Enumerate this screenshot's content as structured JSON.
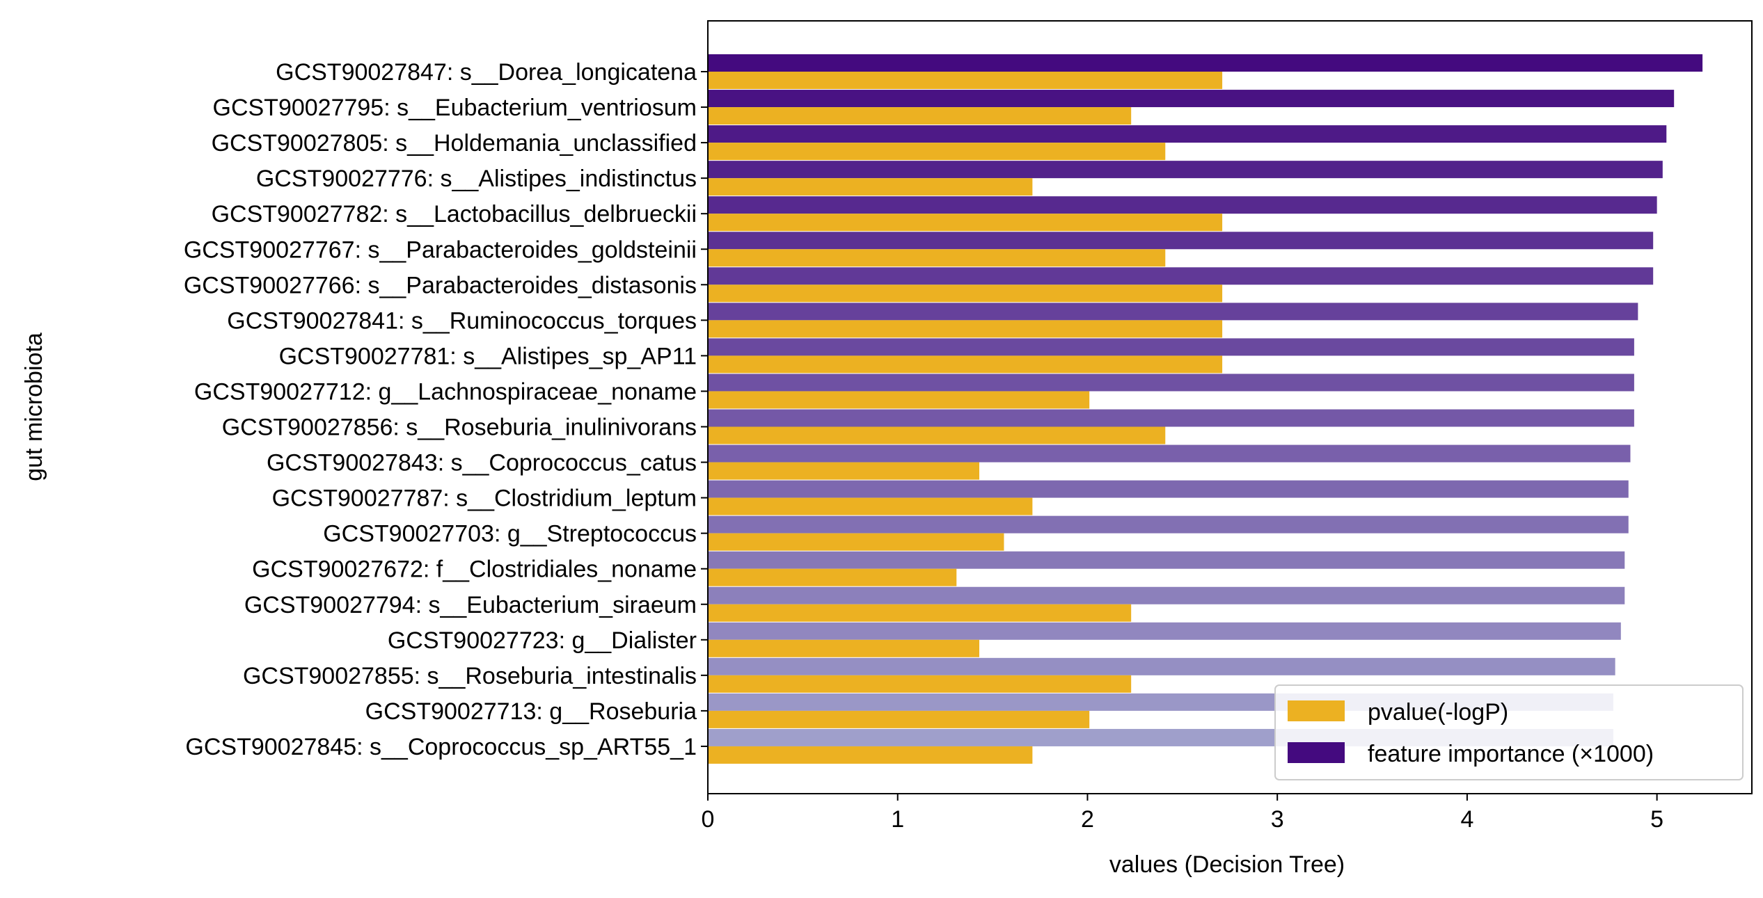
{
  "chart_data": {
    "type": "bar",
    "orientation": "horizontal",
    "title": "",
    "xlabel": "values (Decision Tree)",
    "ylabel": "gut microbiota",
    "xlim": [
      0,
      5.5
    ],
    "xticks": [
      0,
      1,
      2,
      3,
      4,
      5
    ],
    "grid": false,
    "legend": "bottom-right",
    "categories": [
      "GCST90027847: s__Dorea_longicatena",
      "GCST90027795: s__Eubacterium_ventriosum",
      "GCST90027805: s__Holdemania_unclassified",
      "GCST90027776: s__Alistipes_indistinctus",
      "GCST90027782: s__Lactobacillus_delbrueckii",
      "GCST90027767: s__Parabacteroides_goldsteinii",
      "GCST90027766: s__Parabacteroides_distasonis",
      "GCST90027841: s__Ruminococcus_torques",
      "GCST90027781: s__Alistipes_sp_AP11",
      "GCST90027712: g__Lachnospiraceae_noname",
      "GCST90027856: s__Roseburia_inulinivorans",
      "GCST90027843: s__Coprococcus_catus",
      "GCST90027787: s__Clostridium_leptum",
      "GCST90027703: g__Streptococcus",
      "GCST90027672: f__Clostridiales_noname",
      "GCST90027794: s__Eubacterium_siraeum",
      "GCST90027723: g__Dialister",
      "GCST90027855: s__Roseburia_intestinalis",
      "GCST90027713: g__Roseburia",
      "GCST90027845: s__Coprococcus_sp_ART55_1"
    ],
    "series": [
      {
        "name": "pvalue(-logP)",
        "color": "#ecb122",
        "values": [
          2.71,
          2.23,
          2.41,
          1.71,
          2.71,
          2.41,
          2.71,
          2.71,
          2.71,
          2.01,
          2.41,
          1.43,
          1.71,
          1.56,
          1.31,
          2.23,
          1.43,
          2.23,
          2.01,
          1.71
        ]
      },
      {
        "name": "feature importance (×1000)",
        "color": "#440a7f",
        "values": [
          5.24,
          5.09,
          5.05,
          5.03,
          5.0,
          4.98,
          4.98,
          4.9,
          4.88,
          4.88,
          4.88,
          4.86,
          4.85,
          4.85,
          4.83,
          4.83,
          4.81,
          4.78,
          4.77,
          4.77
        ],
        "color_gradient": [
          "#440a7f",
          "#9f9fcb"
        ]
      }
    ]
  }
}
